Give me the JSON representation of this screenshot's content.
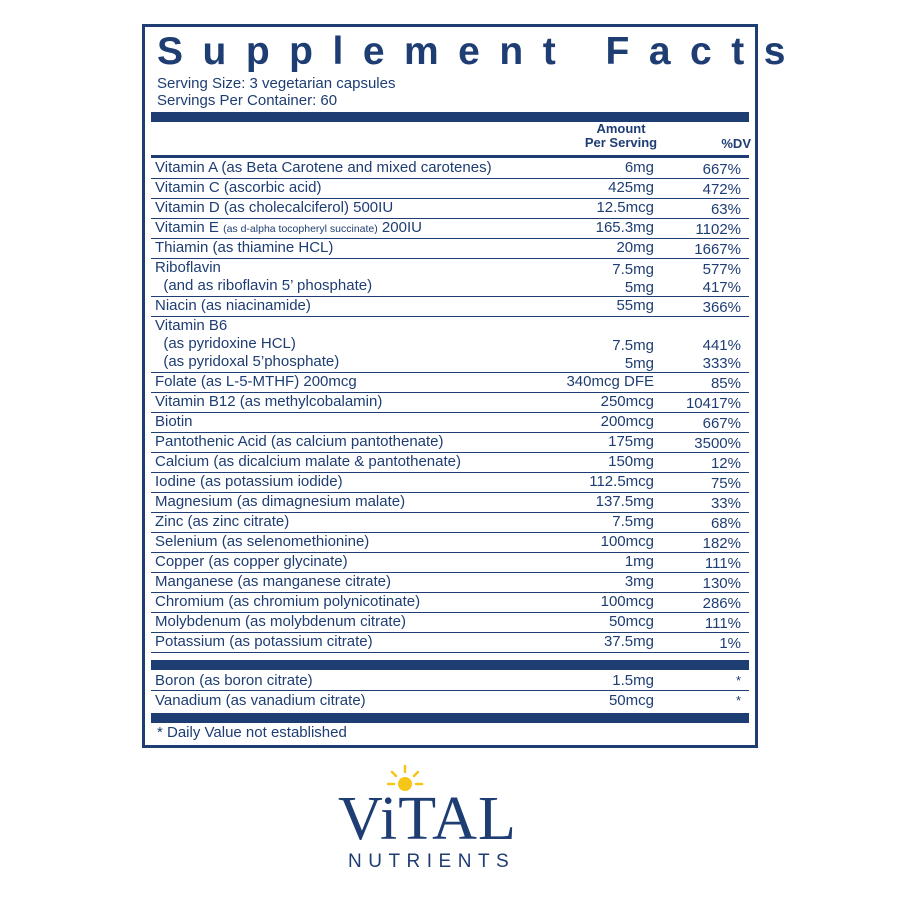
{
  "panel": {
    "title": "Supplement Facts",
    "serving_size": "Serving Size:  3 vegetarian capsules",
    "servings_per_container": "Servings Per Container: 60",
    "col_amount_line1": "Amount",
    "col_amount_line2": "Per Serving",
    "col_dv": "%DV",
    "footnote": "* Daily Value not established"
  },
  "rows": [
    {
      "lines": [
        {
          "name": "Vitamin A (as Beta Carotene and mixed carotenes)",
          "amount": "6mg",
          "dv": "667%"
        }
      ]
    },
    {
      "lines": [
        {
          "name": "Vitamin C (ascorbic acid)",
          "amount": "425mg",
          "dv": "472%"
        }
      ]
    },
    {
      "lines": [
        {
          "name": "Vitamin D (as cholecalciferol) 500IU",
          "amount": "12.5mcg",
          "dv": "63%"
        }
      ]
    },
    {
      "lines": [
        {
          "name_pre": "Vitamin E ",
          "name_small": "(as d-alpha tocopheryl succinate)",
          "name_post": " 200IU",
          "amount": "165.3mg",
          "dv": "1102%"
        }
      ]
    },
    {
      "lines": [
        {
          "name": "Thiamin (as thiamine HCL)",
          "amount": "20mg",
          "dv": "1667%"
        }
      ]
    },
    {
      "lines": [
        {
          "name": "Riboflavin",
          "amount": "7.5mg",
          "dv": "577%"
        },
        {
          "name": "  (and as riboflavin 5’ phosphate)",
          "amount": "5mg",
          "dv": "417%"
        }
      ]
    },
    {
      "lines": [
        {
          "name": "Niacin (as niacinamide)",
          "amount": "55mg",
          "dv": "366%"
        }
      ]
    },
    {
      "lines": [
        {
          "name": "Vitamin B6",
          "amount": "",
          "dv": ""
        },
        {
          "name": "  (as pyridoxine HCL)",
          "amount": "7.5mg",
          "dv": "441%"
        },
        {
          "name": "  (as pyridoxal 5’phosphate)",
          "amount": "5mg",
          "dv": "333%"
        }
      ]
    },
    {
      "lines": [
        {
          "name": "Folate (as L-5-MTHF) 200mcg",
          "amount": "340mcg DFE",
          "dv": "85%"
        }
      ]
    },
    {
      "lines": [
        {
          "name": "Vitamin B12 (as methylcobalamin)",
          "amount": "250mcg",
          "dv": "10417%"
        }
      ]
    },
    {
      "lines": [
        {
          "name": "Biotin",
          "amount": "200mcg",
          "dv": "667%"
        }
      ]
    },
    {
      "lines": [
        {
          "name": "Pantothenic Acid (as calcium pantothenate)",
          "amount": "175mg",
          "dv": "3500%"
        }
      ]
    },
    {
      "lines": [
        {
          "name": "Calcium (as dicalcium malate & pantothenate)",
          "amount": "150mg",
          "dv": "12%"
        }
      ]
    },
    {
      "lines": [
        {
          "name": "Iodine (as potassium iodide)",
          "amount": "112.5mcg",
          "dv": "75%"
        }
      ]
    },
    {
      "lines": [
        {
          "name": "Magnesium (as dimagnesium malate)",
          "amount": "137.5mg",
          "dv": "33%"
        }
      ]
    },
    {
      "lines": [
        {
          "name": "Zinc (as zinc citrate)",
          "amount": "7.5mg",
          "dv": "68%"
        }
      ]
    },
    {
      "lines": [
        {
          "name": "Selenium (as selenomethionine)",
          "amount": "100mcg",
          "dv": "182%"
        }
      ]
    },
    {
      "lines": [
        {
          "name": "Copper (as copper glycinate)",
          "amount": "1mg",
          "dv": "111%"
        }
      ]
    },
    {
      "lines": [
        {
          "name": "Manganese (as manganese citrate)",
          "amount": "3mg",
          "dv": "130%"
        }
      ]
    },
    {
      "lines": [
        {
          "name": "Chromium (as chromium polynicotinate)",
          "amount": "100mcg",
          "dv": "286%"
        }
      ]
    },
    {
      "lines": [
        {
          "name": "Molybdenum (as molybdenum citrate)",
          "amount": "50mcg",
          "dv": "111%"
        }
      ]
    },
    {
      "lines": [
        {
          "name": "Potassium (as potassium citrate)",
          "amount": "37.5mg",
          "dv": "1%"
        }
      ]
    }
  ],
  "other_rows": [
    {
      "name": "Boron (as boron citrate)",
      "amount": "1.5mg",
      "dv": "*"
    },
    {
      "name": "Vanadium (as vanadium citrate)",
      "amount": "50mcg",
      "dv": "*"
    }
  ],
  "logo": {
    "word": "ViTAL",
    "sub": "NUTRIENTS",
    "sun_color": "#f5c518",
    "brand_color": "#1e3d73"
  }
}
